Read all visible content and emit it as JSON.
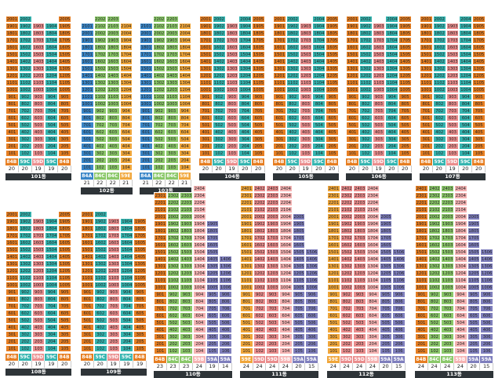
{
  "colors": {
    "84B": "#e67e22",
    "59C": "#35b5b0",
    "59D": "#ea8d8d",
    "59E": "#f0a63a",
    "84A": "#3a86c8",
    "84C": "#8bc86a",
    "59A": "#7f7fbd",
    "59B": "#f5b3b3"
  },
  "buildings": [
    {
      "name": "101동",
      "types": [
        "84B",
        "59C",
        "59D",
        "59C",
        "84B"
      ],
      "counts": [
        "20",
        "20",
        "19",
        "19",
        "20"
      ]
    },
    {
      "name": "102동",
      "types": [
        "84A",
        "84C",
        "84C",
        "59E"
      ],
      "counts": [
        "21",
        "22",
        "22",
        "21"
      ]
    },
    {
      "name": "103동",
      "types": [
        "84A",
        "84C",
        "84C",
        "59E"
      ],
      "counts": [
        "21",
        "22",
        "22",
        "21"
      ]
    },
    {
      "name": "104동",
      "types": [
        "84B",
        "59C",
        "59D",
        "59C",
        "84B"
      ],
      "counts": [
        "20",
        "20",
        "19",
        "20",
        "20"
      ]
    },
    {
      "name": "105동",
      "types": [
        "84B",
        "59C",
        "59D",
        "59C",
        "84B"
      ],
      "counts": [
        "20",
        "20",
        "19",
        "20",
        "20"
      ]
    },
    {
      "name": "106동",
      "types": [
        "84B",
        "59C",
        "59D",
        "59C",
        "84B"
      ],
      "counts": [
        "20",
        "20",
        "19",
        "20",
        "20"
      ]
    },
    {
      "name": "107동",
      "types": [
        "84B",
        "59C",
        "59D",
        "59C",
        "84B"
      ],
      "counts": [
        "20",
        "20",
        "19",
        "20",
        "20"
      ]
    },
    {
      "name": "108동",
      "types": [
        "84B",
        "59C",
        "59D",
        "59C",
        "84B"
      ],
      "counts": [
        "20",
        "20",
        "19",
        "19",
        "20"
      ]
    },
    {
      "name": "109동",
      "types": [
        "84B",
        "59C",
        "59D",
        "59C",
        "84B"
      ],
      "counts": [
        "20",
        "20",
        "19",
        "19",
        "19"
      ]
    },
    {
      "name": "110동",
      "types": [
        "84B",
        "84C",
        "84C",
        "59B",
        "59A",
        "59A"
      ],
      "counts": [
        "23",
        "23",
        "23",
        "24",
        "19",
        "14"
      ]
    },
    {
      "name": "111동",
      "types": [
        "59E",
        "59D",
        "59D",
        "59B",
        "59A",
        "59A"
      ],
      "counts": [
        "24",
        "24",
        "24",
        "24",
        "20",
        "15"
      ]
    },
    {
      "name": "112동",
      "types": [
        "59E",
        "59D",
        "59D",
        "59B",
        "59A",
        "59A"
      ],
      "counts": [
        "24",
        "24",
        "24",
        "24",
        "20",
        "15"
      ]
    },
    {
      "name": "113동",
      "types": [
        "84B",
        "84C",
        "84C",
        "59B",
        "59A",
        "59A"
      ],
      "counts": [
        "24",
        "24",
        "24",
        "24",
        "20",
        "15"
      ]
    }
  ]
}
